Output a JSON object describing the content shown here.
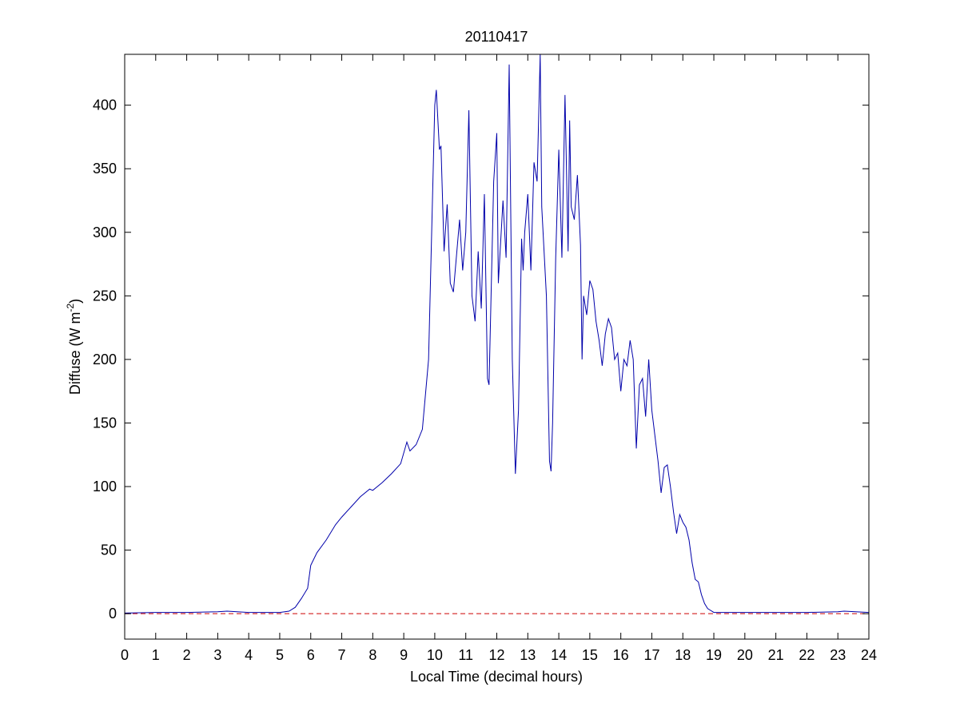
{
  "chart_data": {
    "type": "line",
    "title": "20110417",
    "xlabel": "Local Time (decimal hours)",
    "ylabel": {
      "text": "Diffuse (W m",
      "superscript": "-2",
      "suffix": ")"
    },
    "xlim": [
      0,
      24
    ],
    "xticks": [
      0,
      1,
      2,
      3,
      4,
      5,
      6,
      7,
      8,
      9,
      10,
      11,
      12,
      13,
      14,
      15,
      16,
      17,
      18,
      19,
      20,
      21,
      22,
      23,
      24
    ],
    "ylim": [
      -20,
      440
    ],
    "yticks": [
      0,
      50,
      100,
      150,
      200,
      250,
      300,
      350,
      400
    ],
    "reference_line": {
      "value": 0,
      "color": "#cc0000",
      "style": "dashed"
    },
    "series": [
      {
        "color": "#0000aa",
        "x": [
          0,
          1,
          2,
          3,
          3.3,
          4,
          5,
          5.3,
          5.5,
          5.7,
          5.9,
          6.0,
          6.2,
          6.5,
          6.8,
          7.0,
          7.3,
          7.6,
          7.9,
          8.0,
          8.3,
          8.6,
          8.9,
          9.1,
          9.2,
          9.4,
          9.6,
          9.8,
          9.9,
          10.0,
          10.05,
          10.15,
          10.2,
          10.3,
          10.4,
          10.5,
          10.6,
          10.8,
          10.9,
          11.0,
          11.1,
          11.2,
          11.3,
          11.4,
          11.5,
          11.6,
          11.7,
          11.75,
          11.9,
          12.0,
          12.05,
          12.2,
          12.3,
          12.4,
          12.5,
          12.6,
          12.7,
          12.8,
          12.85,
          12.9,
          13.0,
          13.1,
          13.2,
          13.3,
          13.4,
          13.45,
          13.6,
          13.7,
          13.75,
          13.8,
          13.9,
          14.0,
          14.1,
          14.2,
          14.3,
          14.35,
          14.4,
          14.5,
          14.6,
          14.7,
          14.75,
          14.8,
          14.9,
          15.0,
          15.1,
          15.2,
          15.3,
          15.4,
          15.5,
          15.6,
          15.7,
          15.8,
          15.9,
          16.0,
          16.1,
          16.2,
          16.3,
          16.4,
          16.5,
          16.6,
          16.7,
          16.8,
          16.9,
          17.0,
          17.1,
          17.2,
          17.3,
          17.4,
          17.5,
          17.6,
          17.7,
          17.8,
          17.9,
          18.0,
          18.1,
          18.2,
          18.3,
          18.4,
          18.5,
          18.6,
          18.7,
          18.8,
          19.0,
          20,
          22,
          23,
          23.2,
          24
        ],
        "values": [
          0.5,
          1,
          1,
          1.5,
          2,
          1,
          1,
          2,
          5,
          12,
          20,
          38,
          48,
          58,
          70,
          76,
          84,
          92,
          98,
          97,
          103,
          110,
          118,
          135,
          128,
          133,
          145,
          200,
          300,
          400,
          412,
          365,
          368,
          285,
          322,
          260,
          253,
          310,
          270,
          300,
          396,
          250,
          230,
          285,
          240,
          330,
          185,
          180,
          340,
          378,
          260,
          325,
          280,
          432,
          200,
          110,
          160,
          295,
          270,
          300,
          330,
          270,
          355,
          340,
          440,
          320,
          250,
          120,
          112,
          150,
          280,
          365,
          280,
          408,
          285,
          388,
          320,
          310,
          345,
          290,
          200,
          250,
          235,
          262,
          255,
          230,
          215,
          195,
          220,
          232,
          225,
          200,
          205,
          175,
          200,
          195,
          215,
          200,
          130,
          180,
          185,
          155,
          200,
          160,
          140,
          120,
          95,
          115,
          117,
          100,
          80,
          63,
          78,
          72,
          68,
          58,
          40,
          27,
          25,
          15,
          8,
          4,
          1,
          1,
          1,
          1.5,
          2,
          1
        ]
      }
    ]
  }
}
